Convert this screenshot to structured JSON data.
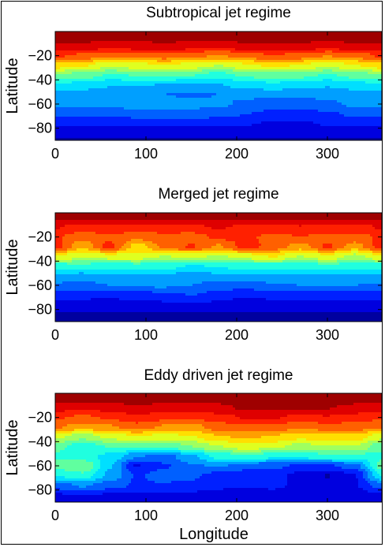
{
  "chart_data": [
    {
      "type": "heatmap",
      "title": "Subtropical jet regime",
      "xlabel": "",
      "ylabel": "Latitude",
      "xlim": [
        0,
        360
      ],
      "ylim": [
        -90,
        0
      ],
      "xticks": [
        0,
        100,
        200,
        300
      ],
      "yticks": [
        -20,
        -40,
        -60,
        -80
      ],
      "colormap": "jet",
      "field": {
        "lats": [
          -3,
          -12,
          -20,
          -28,
          -36,
          -44,
          -52,
          -60,
          -68,
          -76,
          -84,
          -90
        ],
        "lons": [
          0,
          30,
          60,
          90,
          120,
          150,
          180,
          210,
          240,
          270,
          300,
          330,
          360
        ],
        "values": [
          [
            0.99,
            0.99,
            0.99,
            0.99,
            0.99,
            0.99,
            0.99,
            0.99,
            0.99,
            0.99,
            0.99,
            0.99,
            0.99
          ],
          [
            0.93,
            0.92,
            0.9,
            0.91,
            0.92,
            0.91,
            0.9,
            0.92,
            0.93,
            0.92,
            0.91,
            0.92,
            0.93
          ],
          [
            0.82,
            0.8,
            0.76,
            0.78,
            0.79,
            0.77,
            0.74,
            0.78,
            0.81,
            0.79,
            0.75,
            0.78,
            0.82
          ],
          [
            0.66,
            0.63,
            0.58,
            0.6,
            0.62,
            0.6,
            0.56,
            0.61,
            0.64,
            0.62,
            0.58,
            0.62,
            0.66
          ],
          [
            0.5,
            0.47,
            0.43,
            0.44,
            0.45,
            0.44,
            0.41,
            0.45,
            0.48,
            0.46,
            0.43,
            0.46,
            0.5
          ],
          [
            0.37,
            0.35,
            0.32,
            0.32,
            0.31,
            0.31,
            0.31,
            0.34,
            0.36,
            0.34,
            0.32,
            0.35,
            0.37
          ],
          [
            0.29,
            0.28,
            0.27,
            0.26,
            0.25,
            0.24,
            0.25,
            0.26,
            0.27,
            0.26,
            0.27,
            0.28,
            0.29
          ],
          [
            0.27,
            0.26,
            0.27,
            0.28,
            0.28,
            0.27,
            0.26,
            0.24,
            0.22,
            0.22,
            0.24,
            0.26,
            0.27
          ],
          [
            0.21,
            0.2,
            0.21,
            0.22,
            0.23,
            0.23,
            0.21,
            0.19,
            0.17,
            0.16,
            0.18,
            0.2,
            0.21
          ],
          [
            0.14,
            0.13,
            0.13,
            0.14,
            0.15,
            0.15,
            0.14,
            0.13,
            0.12,
            0.12,
            0.13,
            0.14,
            0.14
          ],
          [
            0.08,
            0.08,
            0.08,
            0.08,
            0.08,
            0.08,
            0.08,
            0.08,
            0.08,
            0.08,
            0.08,
            0.08,
            0.08
          ],
          [
            0.05,
            0.05,
            0.05,
            0.05,
            0.05,
            0.05,
            0.05,
            0.05,
            0.05,
            0.05,
            0.05,
            0.05,
            0.05
          ]
        ]
      }
    },
    {
      "type": "heatmap",
      "title": "Merged jet regime",
      "xlabel": "",
      "ylabel": "Latitude",
      "xlim": [
        0,
        360
      ],
      "ylim": [
        -90,
        0
      ],
      "xticks": [
        0,
        100,
        200,
        300
      ],
      "yticks": [
        -20,
        -40,
        -60,
        -80
      ],
      "colormap": "jet",
      "field": {
        "lats": [
          -3,
          -12,
          -20,
          -28,
          -36,
          -44,
          -52,
          -60,
          -68,
          -76,
          -84,
          -90
        ],
        "lons": [
          0,
          30,
          60,
          90,
          120,
          150,
          180,
          210,
          240,
          270,
          300,
          330,
          360
        ],
        "values": [
          [
            0.97,
            0.97,
            0.97,
            0.97,
            0.97,
            0.97,
            0.97,
            0.97,
            0.97,
            0.97,
            0.97,
            0.97,
            0.97
          ],
          [
            0.88,
            0.84,
            0.86,
            0.85,
            0.84,
            0.86,
            0.88,
            0.86,
            0.85,
            0.87,
            0.86,
            0.85,
            0.88
          ],
          [
            0.82,
            0.78,
            0.8,
            0.77,
            0.8,
            0.78,
            0.83,
            0.82,
            0.8,
            0.81,
            0.8,
            0.79,
            0.82
          ],
          [
            0.84,
            0.7,
            0.83,
            0.66,
            0.76,
            0.82,
            0.74,
            0.84,
            0.79,
            0.72,
            0.82,
            0.72,
            0.84
          ],
          [
            0.62,
            0.58,
            0.6,
            0.6,
            0.56,
            0.58,
            0.55,
            0.59,
            0.63,
            0.56,
            0.61,
            0.54,
            0.62
          ],
          [
            0.4,
            0.42,
            0.39,
            0.41,
            0.4,
            0.37,
            0.38,
            0.41,
            0.4,
            0.39,
            0.42,
            0.4,
            0.4
          ],
          [
            0.3,
            0.29,
            0.31,
            0.3,
            0.3,
            0.29,
            0.3,
            0.31,
            0.3,
            0.3,
            0.31,
            0.3,
            0.3
          ],
          [
            0.24,
            0.23,
            0.25,
            0.26,
            0.26,
            0.25,
            0.22,
            0.22,
            0.24,
            0.25,
            0.26,
            0.25,
            0.24
          ],
          [
            0.16,
            0.15,
            0.14,
            0.16,
            0.17,
            0.19,
            0.16,
            0.13,
            0.15,
            0.16,
            0.15,
            0.15,
            0.16
          ],
          [
            0.1,
            0.09,
            0.09,
            0.1,
            0.11,
            0.12,
            0.11,
            0.09,
            0.09,
            0.1,
            0.09,
            0.09,
            0.1
          ],
          [
            0.06,
            0.06,
            0.06,
            0.06,
            0.06,
            0.06,
            0.06,
            0.06,
            0.06,
            0.06,
            0.06,
            0.06,
            0.06
          ],
          [
            0.05,
            0.05,
            0.05,
            0.05,
            0.05,
            0.05,
            0.05,
            0.05,
            0.05,
            0.05,
            0.05,
            0.05,
            0.05
          ]
        ]
      }
    },
    {
      "type": "heatmap",
      "title": "Eddy driven jet regime",
      "xlabel": "Longitude",
      "ylabel": "Latitude",
      "xlim": [
        0,
        360
      ],
      "ylim": [
        -90,
        0
      ],
      "xticks": [
        0,
        100,
        200,
        300
      ],
      "yticks": [
        -20,
        -40,
        -60,
        -80
      ],
      "colormap": "jet",
      "field": {
        "lats": [
          -3,
          -12,
          -20,
          -28,
          -36,
          -44,
          -52,
          -60,
          -68,
          -76,
          -84,
          -90
        ],
        "lons": [
          0,
          30,
          60,
          90,
          120,
          150,
          180,
          210,
          240,
          270,
          300,
          330,
          360
        ],
        "values": [
          [
            0.97,
            0.97,
            0.98,
            0.99,
            0.98,
            0.97,
            0.98,
            0.99,
            0.99,
            0.99,
            0.99,
            0.98,
            0.97
          ],
          [
            0.9,
            0.89,
            0.9,
            0.93,
            0.91,
            0.9,
            0.92,
            0.95,
            0.95,
            0.94,
            0.94,
            0.92,
            0.9
          ],
          [
            0.82,
            0.8,
            0.82,
            0.86,
            0.83,
            0.82,
            0.85,
            0.88,
            0.88,
            0.86,
            0.87,
            0.85,
            0.82
          ],
          [
            0.76,
            0.72,
            0.74,
            0.78,
            0.74,
            0.72,
            0.78,
            0.8,
            0.79,
            0.76,
            0.78,
            0.78,
            0.76
          ],
          [
            0.58,
            0.52,
            0.58,
            0.62,
            0.6,
            0.62,
            0.68,
            0.7,
            0.68,
            0.64,
            0.66,
            0.66,
            0.58
          ],
          [
            0.46,
            0.4,
            0.44,
            0.46,
            0.44,
            0.5,
            0.56,
            0.6,
            0.58,
            0.54,
            0.56,
            0.56,
            0.46
          ],
          [
            0.42,
            0.4,
            0.36,
            0.26,
            0.22,
            0.3,
            0.4,
            0.42,
            0.4,
            0.4,
            0.42,
            0.42,
            0.42
          ],
          [
            0.46,
            0.5,
            0.32,
            0.12,
            0.18,
            0.24,
            0.26,
            0.22,
            0.2,
            0.18,
            0.18,
            0.22,
            0.46
          ],
          [
            0.38,
            0.42,
            0.3,
            0.18,
            0.22,
            0.2,
            0.16,
            0.14,
            0.16,
            0.1,
            0.06,
            0.12,
            0.38
          ],
          [
            0.22,
            0.26,
            0.22,
            0.18,
            0.18,
            0.17,
            0.14,
            0.13,
            0.14,
            0.11,
            0.08,
            0.12,
            0.22
          ],
          [
            0.12,
            0.13,
            0.12,
            0.11,
            0.11,
            0.11,
            0.1,
            0.1,
            0.1,
            0.1,
            0.1,
            0.1,
            0.12
          ],
          [
            0.06,
            0.06,
            0.06,
            0.06,
            0.06,
            0.06,
            0.06,
            0.06,
            0.06,
            0.06,
            0.06,
            0.06,
            0.06
          ]
        ]
      }
    }
  ]
}
